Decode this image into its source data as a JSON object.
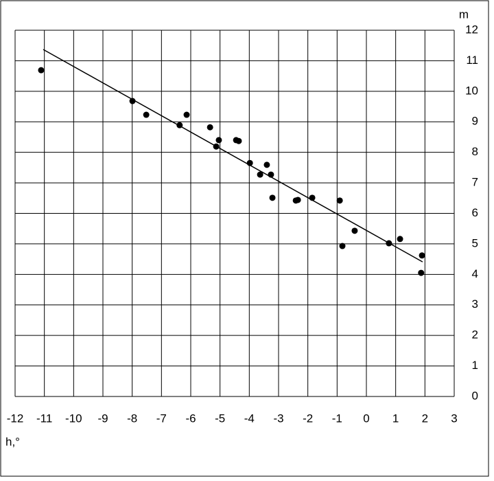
{
  "chart_data": {
    "type": "scatter",
    "x_label": "h,°",
    "y_label": "m",
    "xlim": [
      -12,
      3
    ],
    "ylim": [
      0,
      12
    ],
    "xticks": [
      -12,
      -11,
      -10,
      -9,
      -8,
      -7,
      -6,
      -5,
      -4,
      -3,
      -2,
      -1,
      0,
      1,
      2,
      3
    ],
    "yticks": [
      0,
      1,
      2,
      3,
      4,
      5,
      6,
      7,
      8,
      9,
      10,
      11,
      12
    ],
    "grid": true,
    "color": "#000000",
    "series": [
      {
        "color": "#000000",
        "x": [
          -11.11,
          -7.99,
          -7.52,
          -6.38,
          -6.14,
          -5.34,
          -5.04,
          -5.13,
          -4.45,
          -4.36,
          -3.98,
          -3.63,
          -3.4,
          -3.26,
          -3.21,
          -2.41,
          -2.34,
          -1.85,
          -0.91,
          -0.82,
          -0.4,
          0.77,
          1.15,
          1.9,
          1.87
        ],
        "values": [
          10.69,
          9.68,
          9.23,
          8.89,
          9.23,
          8.82,
          8.4,
          8.19,
          8.4,
          8.37,
          7.65,
          7.27,
          7.59,
          7.27,
          6.51,
          6.42,
          6.44,
          6.51,
          6.42,
          4.93,
          5.43,
          5.02,
          5.16,
          4.62,
          4.05
        ]
      }
    ],
    "trendline": {
      "x": [
        -11.04,
        1.92
      ],
      "values": [
        11.37,
        4.41
      ]
    }
  }
}
